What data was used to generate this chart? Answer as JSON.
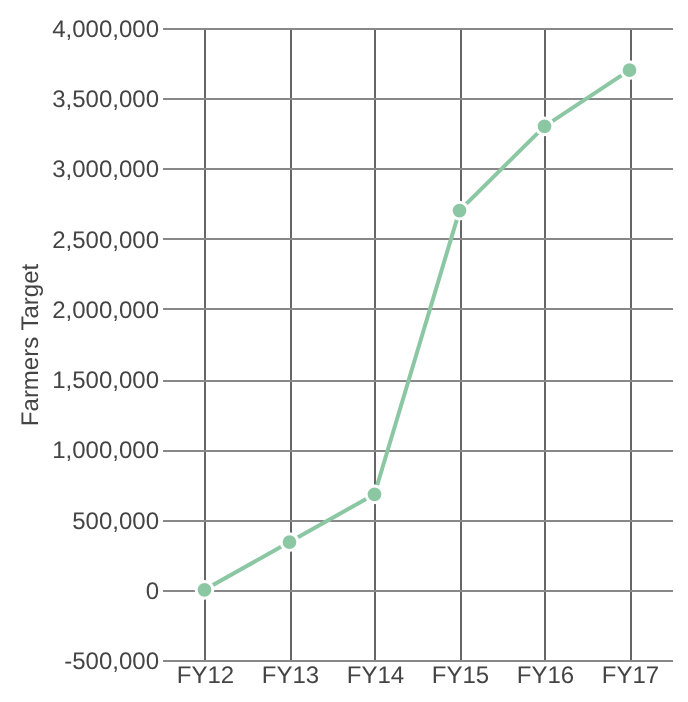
{
  "chart_data": {
    "type": "line",
    "ylabel": "Farmers Target",
    "categories": [
      "FY12",
      "FY13",
      "FY14",
      "FY15",
      "FY16",
      "FY17"
    ],
    "series": [
      {
        "color": "#8cc7a4",
        "values": [
          0,
          340000,
          680000,
          2700000,
          3300000,
          3700000
        ]
      }
    ],
    "ylim": [
      -500000,
      4000000
    ],
    "yticks": [
      {
        "value": -500000,
        "label": "-500,000"
      },
      0,
      {
        "value": 500000,
        "label": "500,000"
      },
      {
        "value": 1000000,
        "label": "1,000,000"
      },
      {
        "value": 1500000,
        "label": "1,500,000"
      },
      {
        "value": 2000000,
        "label": "2,000,000"
      },
      {
        "value": 2500000,
        "label": "2,500,000"
      },
      {
        "value": 3000000,
        "label": "3,000,000"
      },
      {
        "value": 3500000,
        "label": "3,500,000"
      },
      {
        "value": 4000000,
        "label": "4,000,000"
      }
    ],
    "grid": true,
    "marker": "circle",
    "line_style": "solid"
  }
}
